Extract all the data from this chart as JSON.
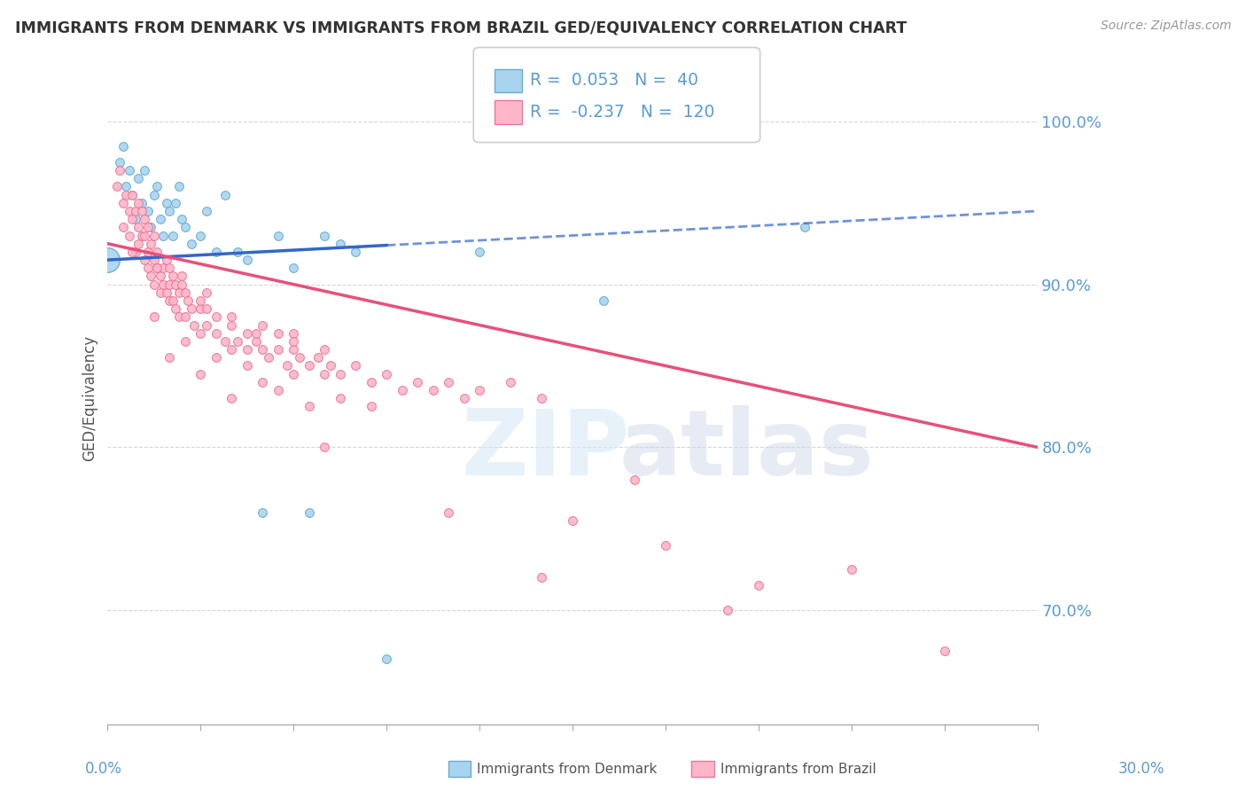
{
  "title": "IMMIGRANTS FROM DENMARK VS IMMIGRANTS FROM BRAZIL GED/EQUIVALENCY CORRELATION CHART",
  "source": "Source: ZipAtlas.com",
  "ylabel": "GED/Equivalency",
  "xmin": 0.0,
  "xmax": 30.0,
  "ymin": 63.0,
  "ymax": 103.0,
  "yticks": [
    70.0,
    80.0,
    90.0,
    100.0
  ],
  "denmark_color": "#A8D4F0",
  "denmark_edge": "#6AAAD0",
  "brazil_color": "#FFB6C8",
  "brazil_edge": "#E87898",
  "trend_denmark_color": "#3366CC",
  "trend_brazil_color": "#E8507A",
  "denmark_R": 0.053,
  "denmark_N": 40,
  "brazil_R": -0.237,
  "brazil_N": 120,
  "background_color": "#FFFFFF",
  "grid_color": "#CCCCCC",
  "axis_label_color": "#5B9BD5",
  "title_color": "#333333",
  "denmark_trend_x0": 0.0,
  "denmark_trend_y0": 91.5,
  "denmark_trend_x1": 30.0,
  "denmark_trend_y1": 94.5,
  "brazil_trend_x0": 0.0,
  "brazil_trend_y0": 92.5,
  "brazil_trend_x1": 30.0,
  "brazil_trend_y1": 80.0,
  "denmark_data": [
    [
      0.4,
      97.5
    ],
    [
      0.5,
      98.5
    ],
    [
      0.6,
      96.0
    ],
    [
      0.7,
      97.0
    ],
    [
      0.8,
      95.5
    ],
    [
      0.9,
      94.0
    ],
    [
      1.0,
      96.5
    ],
    [
      1.1,
      95.0
    ],
    [
      1.2,
      97.0
    ],
    [
      1.3,
      94.5
    ],
    [
      1.4,
      93.5
    ],
    [
      1.5,
      95.5
    ],
    [
      1.6,
      96.0
    ],
    [
      1.7,
      94.0
    ],
    [
      1.8,
      93.0
    ],
    [
      1.9,
      95.0
    ],
    [
      2.0,
      94.5
    ],
    [
      2.1,
      93.0
    ],
    [
      2.2,
      95.0
    ],
    [
      2.3,
      96.0
    ],
    [
      2.4,
      94.0
    ],
    [
      2.5,
      93.5
    ],
    [
      2.7,
      92.5
    ],
    [
      3.0,
      93.0
    ],
    [
      3.2,
      94.5
    ],
    [
      3.5,
      92.0
    ],
    [
      3.8,
      95.5
    ],
    [
      4.2,
      92.0
    ],
    [
      4.5,
      91.5
    ],
    [
      5.0,
      76.0
    ],
    [
      5.5,
      93.0
    ],
    [
      6.0,
      91.0
    ],
    [
      6.5,
      76.0
    ],
    [
      7.0,
      93.0
    ],
    [
      7.5,
      92.5
    ],
    [
      8.0,
      92.0
    ],
    [
      9.0,
      67.0
    ],
    [
      12.0,
      92.0
    ],
    [
      16.0,
      89.0
    ],
    [
      22.5,
      93.5
    ]
  ],
  "brazil_data": [
    [
      0.3,
      96.0
    ],
    [
      0.4,
      97.0
    ],
    [
      0.5,
      95.0
    ],
    [
      0.5,
      93.5
    ],
    [
      0.6,
      95.5
    ],
    [
      0.7,
      94.5
    ],
    [
      0.7,
      93.0
    ],
    [
      0.8,
      94.0
    ],
    [
      0.8,
      95.5
    ],
    [
      0.9,
      92.0
    ],
    [
      0.9,
      94.5
    ],
    [
      1.0,
      93.5
    ],
    [
      1.0,
      95.0
    ],
    [
      1.0,
      92.5
    ],
    [
      1.1,
      93.0
    ],
    [
      1.1,
      94.5
    ],
    [
      1.2,
      91.5
    ],
    [
      1.2,
      93.0
    ],
    [
      1.2,
      94.0
    ],
    [
      1.3,
      92.0
    ],
    [
      1.3,
      93.5
    ],
    [
      1.3,
      91.0
    ],
    [
      1.4,
      92.5
    ],
    [
      1.4,
      90.5
    ],
    [
      1.5,
      93.0
    ],
    [
      1.5,
      91.5
    ],
    [
      1.5,
      90.0
    ],
    [
      1.6,
      92.0
    ],
    [
      1.6,
      91.0
    ],
    [
      1.7,
      90.5
    ],
    [
      1.7,
      89.5
    ],
    [
      1.8,
      91.0
    ],
    [
      1.8,
      90.0
    ],
    [
      1.9,
      89.5
    ],
    [
      1.9,
      91.5
    ],
    [
      2.0,
      90.0
    ],
    [
      2.0,
      89.0
    ],
    [
      2.0,
      91.0
    ],
    [
      2.1,
      90.5
    ],
    [
      2.1,
      89.0
    ],
    [
      2.2,
      88.5
    ],
    [
      2.2,
      90.0
    ],
    [
      2.3,
      89.5
    ],
    [
      2.3,
      88.0
    ],
    [
      2.4,
      90.5
    ],
    [
      2.5,
      89.5
    ],
    [
      2.5,
      88.0
    ],
    [
      2.6,
      89.0
    ],
    [
      2.7,
      88.5
    ],
    [
      2.8,
      87.5
    ],
    [
      3.0,
      88.5
    ],
    [
      3.0,
      87.0
    ],
    [
      3.0,
      89.0
    ],
    [
      3.2,
      87.5
    ],
    [
      3.2,
      88.5
    ],
    [
      3.5,
      88.0
    ],
    [
      3.5,
      87.0
    ],
    [
      3.8,
      86.5
    ],
    [
      4.0,
      87.5
    ],
    [
      4.0,
      86.0
    ],
    [
      4.0,
      88.0
    ],
    [
      4.2,
      86.5
    ],
    [
      4.5,
      87.0
    ],
    [
      4.5,
      86.0
    ],
    [
      4.8,
      86.5
    ],
    [
      5.0,
      86.0
    ],
    [
      5.0,
      87.5
    ],
    [
      5.2,
      85.5
    ],
    [
      5.5,
      86.0
    ],
    [
      5.5,
      87.0
    ],
    [
      5.8,
      85.0
    ],
    [
      6.0,
      86.0
    ],
    [
      6.0,
      84.5
    ],
    [
      6.0,
      87.0
    ],
    [
      6.2,
      85.5
    ],
    [
      6.5,
      85.0
    ],
    [
      6.8,
      85.5
    ],
    [
      7.0,
      84.5
    ],
    [
      7.0,
      86.0
    ],
    [
      7.2,
      85.0
    ],
    [
      7.5,
      84.5
    ],
    [
      8.0,
      85.0
    ],
    [
      8.5,
      84.0
    ],
    [
      9.0,
      84.5
    ],
    [
      9.5,
      83.5
    ],
    [
      10.0,
      84.0
    ],
    [
      10.5,
      83.5
    ],
    [
      11.0,
      84.0
    ],
    [
      11.5,
      83.0
    ],
    [
      12.0,
      83.5
    ],
    [
      13.0,
      84.0
    ],
    [
      14.0,
      83.0
    ],
    [
      2.0,
      85.5
    ],
    [
      3.0,
      84.5
    ],
    [
      4.0,
      83.0
    ],
    [
      5.0,
      84.0
    ],
    [
      1.5,
      88.0
    ],
    [
      2.5,
      86.5
    ],
    [
      3.5,
      85.5
    ],
    [
      4.5,
      85.0
    ],
    [
      5.5,
      83.5
    ],
    [
      6.5,
      82.5
    ],
    [
      7.5,
      83.0
    ],
    [
      8.5,
      82.5
    ],
    [
      0.8,
      92.0
    ],
    [
      1.6,
      91.0
    ],
    [
      2.4,
      90.0
    ],
    [
      3.2,
      89.5
    ],
    [
      4.8,
      87.0
    ],
    [
      6.0,
      86.5
    ],
    [
      7.0,
      80.0
    ],
    [
      11.0,
      76.0
    ],
    [
      14.0,
      72.0
    ],
    [
      17.0,
      78.0
    ],
    [
      20.0,
      70.0
    ],
    [
      24.0,
      72.5
    ],
    [
      27.0,
      67.5
    ],
    [
      15.0,
      75.5
    ],
    [
      18.0,
      74.0
    ],
    [
      21.0,
      71.5
    ]
  ],
  "denmark_large_dot": [
    0.0,
    91.5
  ],
  "denmark_large_size": 400
}
